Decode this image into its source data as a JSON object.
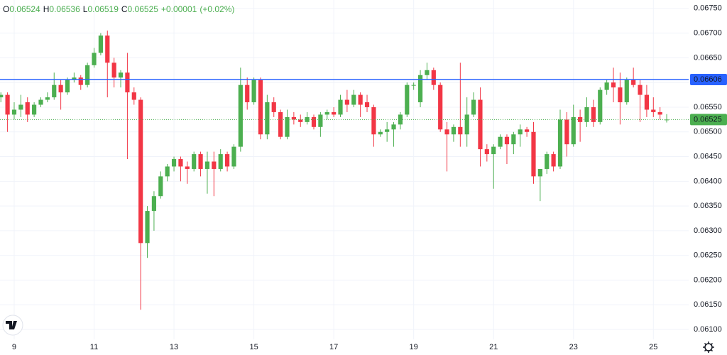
{
  "chart_data": {
    "type": "candlestick",
    "ohlc_legend": [
      {
        "key": "O",
        "value": 0.06524,
        "label": "0.06524"
      },
      {
        "key": "H",
        "value": 0.06536,
        "label": "0.06536"
      },
      {
        "key": "L",
        "value": 0.06519,
        "label": "0.06519"
      },
      {
        "key": "C",
        "value": 0.06525,
        "label": "0.06525"
      }
    ],
    "change": {
      "value": 1e-05,
      "label": "+0.00001"
    },
    "change_pct": {
      "value": 0.02,
      "label": "(+0.02%)"
    },
    "up_color": "#4caf50",
    "down_color": "#f23645",
    "x": [
      0,
      1,
      2,
      3,
      4,
      5,
      6,
      7,
      8,
      9,
      10,
      11,
      12,
      13,
      14,
      15,
      16,
      17,
      18,
      19,
      20,
      21,
      22,
      23,
      24,
      25,
      26,
      27,
      28,
      29,
      30,
      31,
      32,
      33,
      34,
      35,
      36,
      37,
      38,
      39,
      40,
      41,
      42,
      43,
      44,
      45,
      46,
      47,
      48,
      49,
      50,
      51,
      52,
      53,
      54,
      55,
      56,
      57,
      58,
      59,
      60,
      61,
      62,
      63,
      64,
      65,
      66,
      67,
      68,
      69,
      70,
      71,
      72,
      73,
      74,
      75,
      76,
      77,
      78,
      79,
      80,
      81,
      82,
      83,
      84,
      85,
      86,
      87,
      88,
      89,
      90,
      91,
      92,
      93,
      94,
      95,
      96,
      97,
      98,
      99,
      100
    ],
    "open": [
      0.0657,
      0.06575,
      0.06535,
      0.06545,
      0.0656,
      0.06535,
      0.06555,
      0.06565,
      0.0657,
      0.06595,
      0.0658,
      0.06605,
      0.0661,
      0.06595,
      0.06635,
      0.0666,
      0.06695,
      0.0664,
      0.0661,
      0.0662,
      0.0658,
      0.06565,
      0.06275,
      0.0634,
      0.0637,
      0.0641,
      0.0643,
      0.06445,
      0.0643,
      0.06425,
      0.06455,
      0.06425,
      0.0644,
      0.06425,
      0.06455,
      0.0643,
      0.0647,
      0.06595,
      0.0656,
      0.06605,
      0.06495,
      0.0656,
      0.0654,
      0.0649,
      0.0653,
      0.06525,
      0.0652,
      0.0653,
      0.0651,
      0.06535,
      0.0654,
      0.06535,
      0.06565,
      0.06555,
      0.06575,
      0.0656,
      0.0655,
      0.06495,
      0.065,
      0.06505,
      0.06515,
      0.06535,
      0.06595,
      0.0656,
      0.06615,
      0.06625,
      0.06595,
      0.06505,
      0.06495,
      0.0651,
      0.06495,
      0.06535,
      0.06565,
      0.06465,
      0.06455,
      0.0647,
      0.0649,
      0.06475,
      0.06495,
      0.06505,
      0.065,
      0.0641,
      0.06425,
      0.06455,
      0.0643,
      0.06525,
      0.06475,
      0.0653,
      0.0652,
      0.0655,
      0.0652,
      0.06585,
      0.066,
      0.0659,
      0.0656,
      0.06605,
      0.06595,
      0.06575,
      0.06545,
      0.0654,
      0.06524
    ],
    "high": [
      0.0658,
      0.0658,
      0.0656,
      0.06575,
      0.0657,
      0.0656,
      0.0657,
      0.0658,
      0.0662,
      0.06605,
      0.0661,
      0.0662,
      0.06615,
      0.0664,
      0.0667,
      0.067,
      0.06705,
      0.0665,
      0.06625,
      0.0666,
      0.0659,
      0.0657,
      0.0635,
      0.0638,
      0.0642,
      0.06435,
      0.0645,
      0.0645,
      0.0644,
      0.0646,
      0.0646,
      0.0646,
      0.0646,
      0.06465,
      0.0646,
      0.06475,
      0.0663,
      0.0661,
      0.0661,
      0.0661,
      0.06575,
      0.0657,
      0.06545,
      0.06545,
      0.0654,
      0.06535,
      0.0654,
      0.06535,
      0.0654,
      0.06545,
      0.0655,
      0.06575,
      0.06585,
      0.06585,
      0.0658,
      0.06575,
      0.06555,
      0.06505,
      0.0652,
      0.0652,
      0.0654,
      0.066,
      0.066,
      0.06625,
      0.0664,
      0.0663,
      0.066,
      0.0652,
      0.06515,
      0.0664,
      0.0657,
      0.0658,
      0.0659,
      0.06475,
      0.06475,
      0.06495,
      0.06495,
      0.065,
      0.06515,
      0.0651,
      0.0652,
      0.06425,
      0.0646,
      0.0646,
      0.06545,
      0.0654,
      0.06555,
      0.06545,
      0.0657,
      0.06565,
      0.0659,
      0.06605,
      0.0663,
      0.0662,
      0.0661,
      0.0663,
      0.06605,
      0.06595,
      0.0657,
      0.0655,
      0.06536
    ],
    "low": [
      0.0656,
      0.065,
      0.06525,
      0.0653,
      0.0652,
      0.0653,
      0.0655,
      0.0656,
      0.06565,
      0.06545,
      0.06575,
      0.066,
      0.06585,
      0.0659,
      0.0663,
      0.06655,
      0.0657,
      0.0659,
      0.0659,
      0.06445,
      0.06555,
      0.0614,
      0.06245,
      0.063,
      0.06365,
      0.064,
      0.0642,
      0.064,
      0.06395,
      0.0642,
      0.0641,
      0.06375,
      0.0637,
      0.0642,
      0.0642,
      0.06425,
      0.0646,
      0.06545,
      0.06555,
      0.06485,
      0.06485,
      0.0653,
      0.06485,
      0.06485,
      0.06515,
      0.0651,
      0.06515,
      0.06505,
      0.0649,
      0.06525,
      0.0653,
      0.0653,
      0.0654,
      0.0655,
      0.0653,
      0.0654,
      0.0647,
      0.0649,
      0.0648,
      0.0647,
      0.06505,
      0.0653,
      0.06585,
      0.0655,
      0.06605,
      0.06585,
      0.065,
      0.0642,
      0.0648,
      0.0647,
      0.0647,
      0.0653,
      0.0643,
      0.0644,
      0.06385,
      0.06465,
      0.06435,
      0.06455,
      0.0647,
      0.0649,
      0.06395,
      0.0636,
      0.06415,
      0.0642,
      0.06425,
      0.0645,
      0.0647,
      0.0648,
      0.0651,
      0.0651,
      0.06515,
      0.06575,
      0.0656,
      0.06515,
      0.06555,
      0.0659,
      0.0652,
      0.0653,
      0.0653,
      0.06525,
      0.06519
    ],
    "close": [
      0.06575,
      0.06535,
      0.06545,
      0.06555,
      0.06535,
      0.06555,
      0.06565,
      0.0657,
      0.06595,
      0.0658,
      0.06605,
      0.0661,
      0.06595,
      0.06635,
      0.0666,
      0.06695,
      0.0664,
      0.0661,
      0.0662,
      0.0658,
      0.06565,
      0.06275,
      0.0634,
      0.0637,
      0.0641,
      0.0643,
      0.06445,
      0.0643,
      0.06425,
      0.06455,
      0.06425,
      0.0644,
      0.06425,
      0.06455,
      0.0643,
      0.0647,
      0.06595,
      0.0656,
      0.06605,
      0.06495,
      0.0656,
      0.0654,
      0.0649,
      0.0653,
      0.06525,
      0.0652,
      0.0653,
      0.0651,
      0.06535,
      0.0654,
      0.06535,
      0.06565,
      0.06555,
      0.06575,
      0.06555,
      0.0655,
      0.06495,
      0.065,
      0.06505,
      0.06515,
      0.06535,
      0.06595,
      0.06595,
      0.06615,
      0.06625,
      0.06595,
      0.06505,
      0.06495,
      0.0651,
      0.06495,
      0.06535,
      0.06565,
      0.06465,
      0.06455,
      0.0647,
      0.0649,
      0.06475,
      0.06495,
      0.06505,
      0.065,
      0.0641,
      0.06425,
      0.06455,
      0.0643,
      0.06525,
      0.06475,
      0.0653,
      0.0652,
      0.0655,
      0.0652,
      0.06585,
      0.066,
      0.0659,
      0.0656,
      0.06605,
      0.06595,
      0.06575,
      0.06545,
      0.0654,
      0.06535,
      0.06525
    ],
    "xlim": [
      -0.13,
      103.3
    ],
    "xticks": [
      {
        "value": 2,
        "label": "9"
      },
      {
        "value": 14,
        "label": "11"
      },
      {
        "value": 26,
        "label": "13"
      },
      {
        "value": 38,
        "label": "15"
      },
      {
        "value": 50,
        "label": "17"
      },
      {
        "value": 62,
        "label": "19"
      },
      {
        "value": 74,
        "label": "21"
      },
      {
        "value": 86,
        "label": "23"
      },
      {
        "value": 98,
        "label": "25"
      }
    ],
    "ylim": [
      0.0608,
      0.06767
    ],
    "yticks": [
      {
        "value": 0.0675,
        "label": "0.06750"
      },
      {
        "value": 0.067,
        "label": "0.06700"
      },
      {
        "value": 0.0665,
        "label": "0.06650"
      },
      {
        "value": 0.066,
        "label": "0.06600"
      },
      {
        "value": 0.0655,
        "label": "0.06550"
      },
      {
        "value": 0.065,
        "label": "0.06500"
      },
      {
        "value": 0.0645,
        "label": "0.06450"
      },
      {
        "value": 0.064,
        "label": "0.06400"
      },
      {
        "value": 0.0635,
        "label": "0.06350"
      },
      {
        "value": 0.063,
        "label": "0.06300"
      },
      {
        "value": 0.0625,
        "label": "0.06250"
      },
      {
        "value": 0.062,
        "label": "0.06200"
      },
      {
        "value": 0.0615,
        "label": "0.06150"
      },
      {
        "value": 0.061,
        "label": "0.06100"
      }
    ],
    "grid": true,
    "hline": {
      "value": 0.06606,
      "label": "0.06606",
      "color": "#2962ff"
    },
    "price_line": {
      "value": 0.06525,
      "label": "0.06525",
      "color": "#4caf50"
    }
  }
}
